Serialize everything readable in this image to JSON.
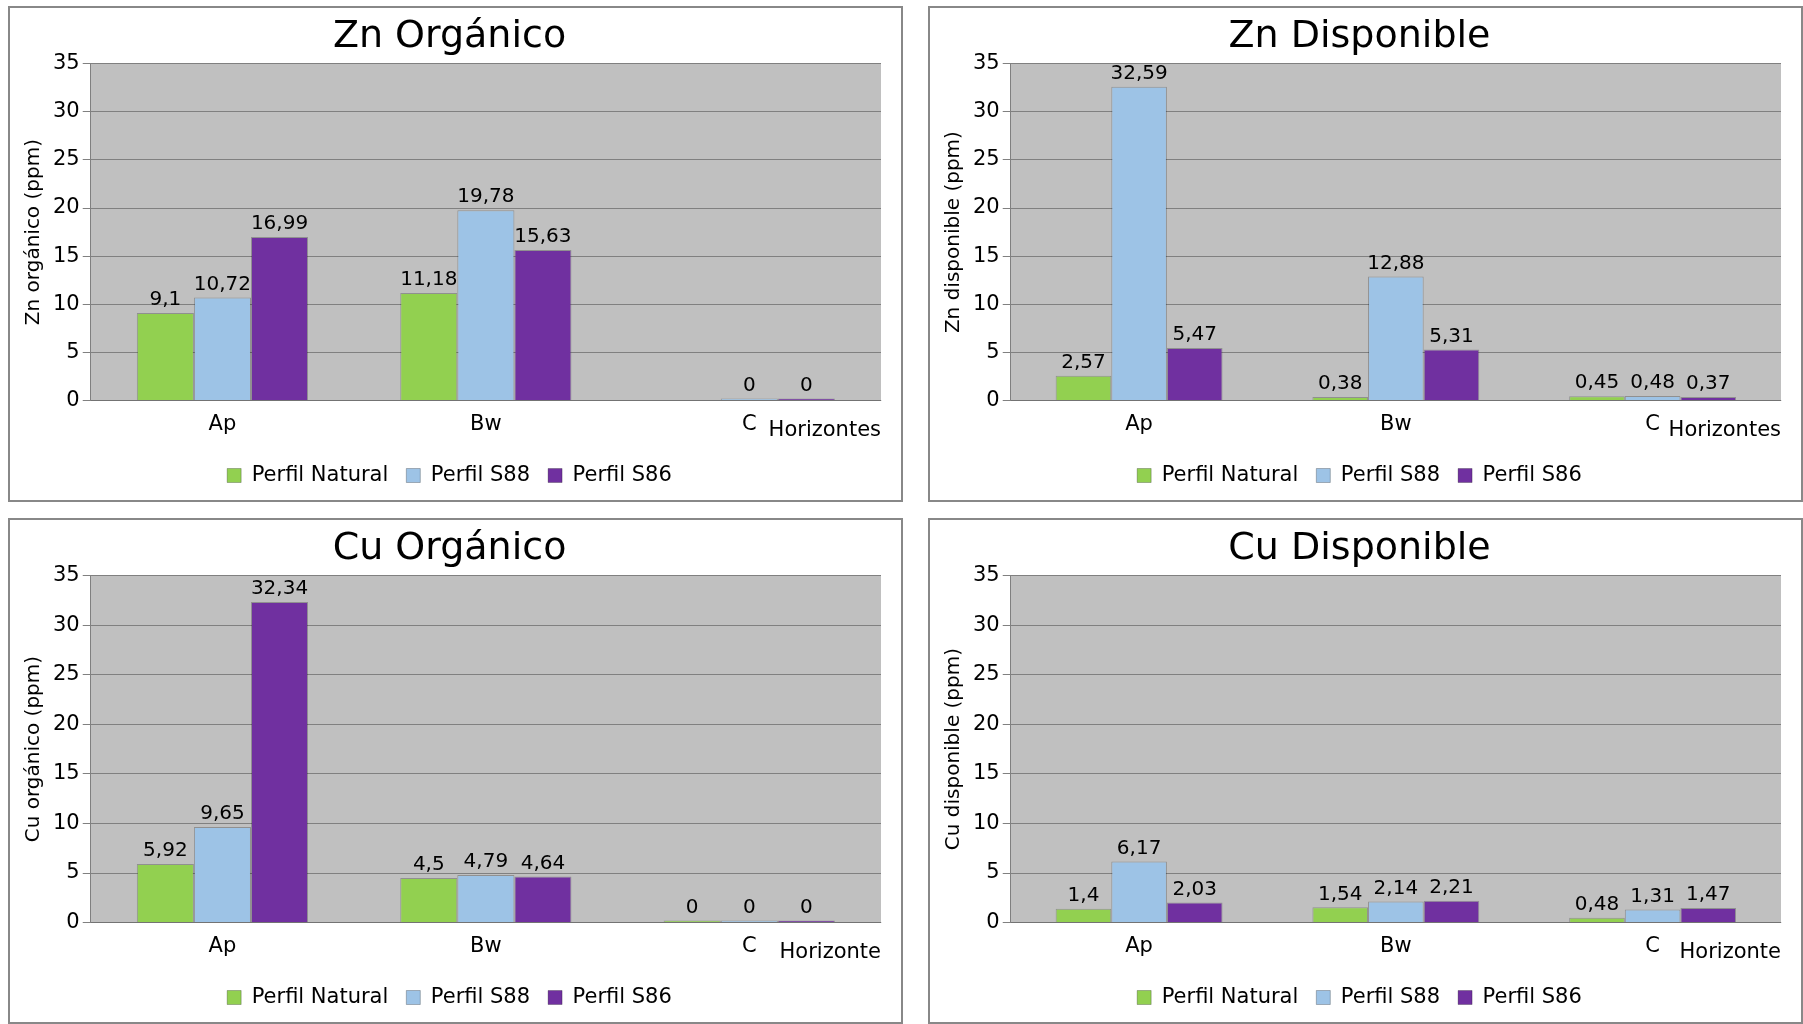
{
  "chart_data": [
    {
      "type": "bar",
      "title": "Zn Orgánico",
      "ylabel": "Zn orgánico (ppm)",
      "xlabel": "Horizontes",
      "categories": [
        "Ap",
        "Bw",
        "C"
      ],
      "ylim": [
        0,
        35
      ],
      "yticks": [
        0,
        5,
        10,
        15,
        20,
        25,
        30,
        35
      ],
      "grid": "y",
      "legend": "bottom",
      "series": [
        {
          "name": "Perfil Natural",
          "color": "#92d050",
          "values": [
            9.1,
            11.18,
            null
          ],
          "value_labels": [
            "9,1",
            "11,18",
            null
          ]
        },
        {
          "name": "Perfil S88",
          "color": "#9dc3e6",
          "values": [
            10.72,
            19.78,
            0
          ],
          "value_labels": [
            "10,72",
            "19,78",
            "0"
          ]
        },
        {
          "name": "Perfil S86",
          "color": "#7030a0",
          "values": [
            16.99,
            15.63,
            0
          ],
          "value_labels": [
            "16,99",
            "15,63",
            "0"
          ]
        }
      ]
    },
    {
      "type": "bar",
      "title": "Zn Disponible",
      "ylabel": "Zn disponible (ppm)",
      "xlabel": "Horizontes",
      "categories": [
        "Ap",
        "Bw",
        "C"
      ],
      "ylim": [
        0,
        35
      ],
      "yticks": [
        0,
        5,
        10,
        15,
        20,
        25,
        30,
        35
      ],
      "grid": "y",
      "legend": "bottom",
      "series": [
        {
          "name": "Perfil Natural",
          "color": "#92d050",
          "values": [
            2.57,
            0.38,
            0.45
          ],
          "value_labels": [
            "2,57",
            "0,38",
            "0,45"
          ]
        },
        {
          "name": "Perfil S88",
          "color": "#9dc3e6",
          "values": [
            32.59,
            12.88,
            0.48
          ],
          "value_labels": [
            "32,59",
            "12,88",
            "0,48"
          ]
        },
        {
          "name": "Perfil S86",
          "color": "#7030a0",
          "values": [
            5.47,
            5.31,
            0.37
          ],
          "value_labels": [
            "5,47",
            "5,31",
            "0,37"
          ]
        }
      ]
    },
    {
      "type": "bar",
      "title": "Cu Orgánico",
      "ylabel": "Cu orgánico (ppm)",
      "xlabel": "Horizonte",
      "categories": [
        "Ap",
        "Bw",
        "C"
      ],
      "ylim": [
        0,
        35
      ],
      "yticks": [
        0,
        5,
        10,
        15,
        20,
        25,
        30,
        35
      ],
      "grid": "y",
      "legend": "bottom",
      "series": [
        {
          "name": "Perfil Natural",
          "color": "#92d050",
          "values": [
            5.92,
            4.5,
            0
          ],
          "value_labels": [
            "5,92",
            "4,5",
            "0"
          ]
        },
        {
          "name": "Perfil S88",
          "color": "#9dc3e6",
          "values": [
            9.65,
            4.79,
            0
          ],
          "value_labels": [
            "9,65",
            "4,79",
            "0"
          ]
        },
        {
          "name": "Perfil S86",
          "color": "#7030a0",
          "values": [
            32.34,
            4.64,
            0
          ],
          "value_labels": [
            "32,34",
            "4,64",
            "0"
          ]
        }
      ]
    },
    {
      "type": "bar",
      "title": "Cu Disponible",
      "ylabel": "Cu disponible (ppm)",
      "xlabel": "Horizonte",
      "categories": [
        "Ap",
        "Bw",
        "C"
      ],
      "ylim": [
        0,
        35
      ],
      "yticks": [
        0,
        5,
        10,
        15,
        20,
        25,
        30,
        35
      ],
      "grid": "y",
      "legend": "bottom",
      "series": [
        {
          "name": "Perfil Natural",
          "color": "#92d050",
          "values": [
            1.4,
            1.54,
            0.48
          ],
          "value_labels": [
            "1,4",
            "1,54",
            "0,48"
          ]
        },
        {
          "name": "Perfil S88",
          "color": "#9dc3e6",
          "values": [
            6.17,
            2.14,
            1.31
          ],
          "value_labels": [
            "6,17",
            "2,14",
            "1,31"
          ]
        },
        {
          "name": "Perfil S86",
          "color": "#7030a0",
          "values": [
            2.03,
            2.21,
            1.47
          ],
          "value_labels": [
            "2,03",
            "2,21",
            "1,47"
          ]
        }
      ]
    }
  ]
}
